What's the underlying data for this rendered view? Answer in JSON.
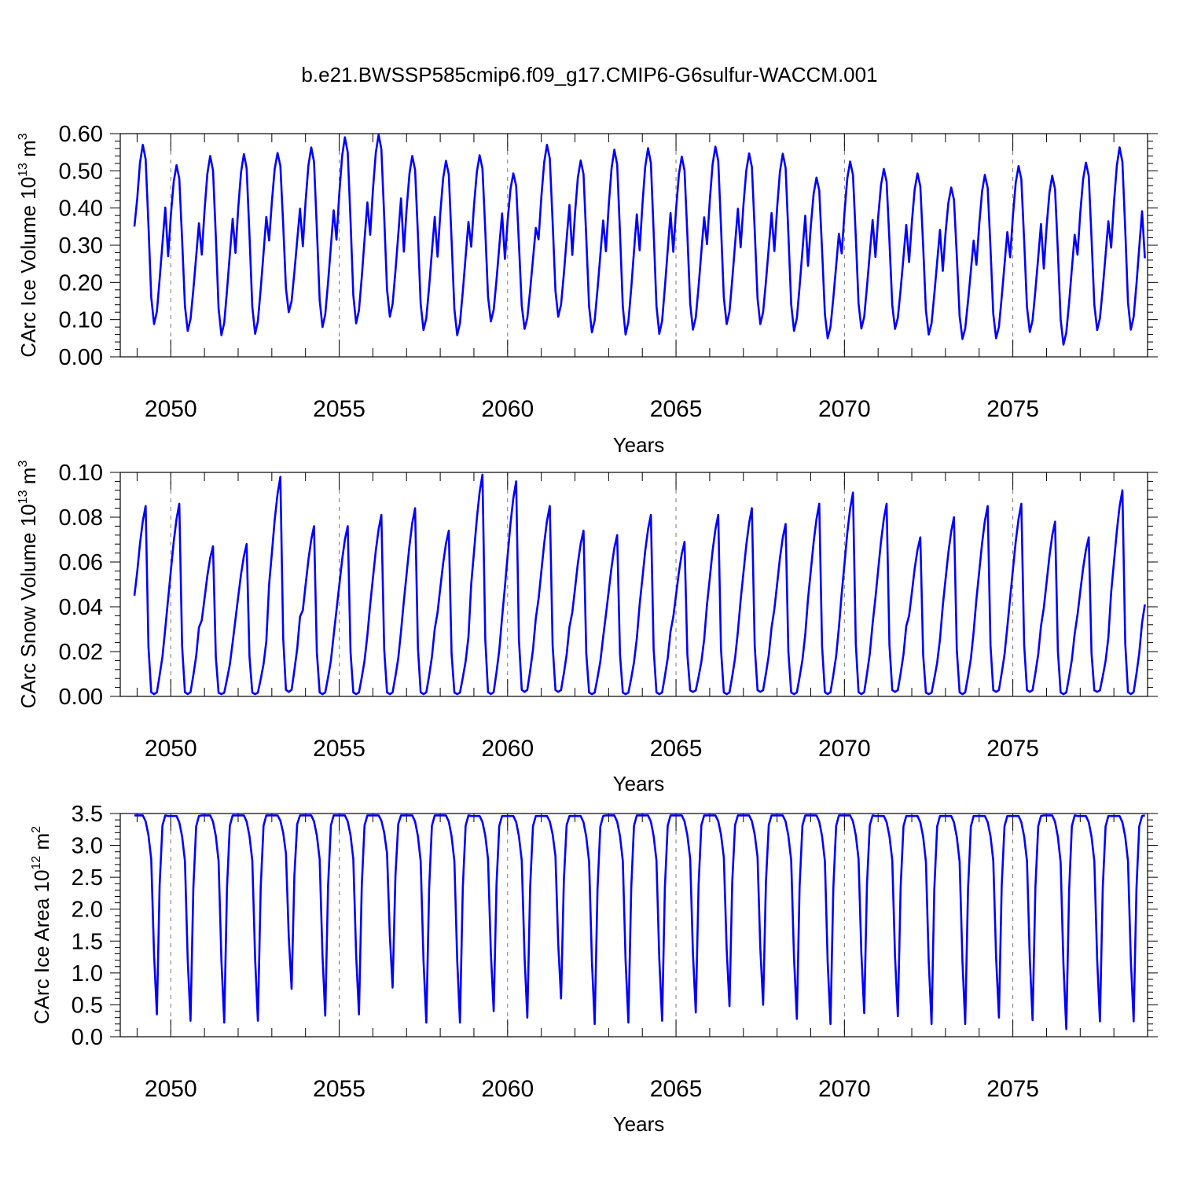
{
  "title": "b.e21.BWSSP585cmip6.f09_g17.CMIP6-G6sulfur-WACCM.001",
  "chart_data": [
    {
      "type": "line",
      "ylabel": "CArc Ice Volume 10",
      "ylabel_exp": "13",
      "ylabel_unit": " m",
      "ylabel_unit_exp": "3",
      "xlabel": "Years",
      "xlim": [
        2048.5,
        2079.0
      ],
      "ylim": [
        0.0,
        0.6
      ],
      "yticks": [
        0.0,
        0.1,
        0.2,
        0.3,
        0.4,
        0.5,
        0.6
      ],
      "ytick_labels": [
        "0.00",
        "0.10",
        "0.20",
        "0.30",
        "0.40",
        "0.50",
        "0.60"
      ],
      "xticks": [
        2050,
        2055,
        2060,
        2065,
        2070,
        2075
      ],
      "xtick_labels": [
        "2050",
        "2055",
        "2060",
        "2065",
        "2070",
        "2075"
      ],
      "grid": "dashed vertical at 5-year ticks",
      "line_color": "#0000ff",
      "year_start": 2049,
      "start_value": 0.35,
      "annual_max": [
        0.57,
        0.515,
        0.54,
        0.545,
        0.548,
        0.563,
        0.59,
        0.597,
        0.54,
        0.527,
        0.542,
        0.493,
        0.57,
        0.528,
        0.557,
        0.561,
        0.538,
        0.565,
        0.547,
        0.546,
        0.482,
        0.525,
        0.505,
        0.493,
        0.455,
        0.489,
        0.513,
        0.487,
        0.522,
        0.563
      ],
      "annual_min": [
        0.088,
        0.07,
        0.058,
        0.062,
        0.12,
        0.08,
        0.09,
        0.108,
        0.072,
        0.058,
        0.095,
        0.075,
        0.108,
        0.066,
        0.06,
        0.062,
        0.073,
        0.088,
        0.088,
        0.07,
        0.05,
        0.076,
        0.075,
        0.06,
        0.048,
        0.05,
        0.067,
        0.033,
        0.072,
        0.073
      ],
      "end_value": 0.265
    },
    {
      "type": "line",
      "ylabel": "CArc Snow Volume 10",
      "ylabel_exp": "13",
      "ylabel_unit": " m",
      "ylabel_unit_exp": "3",
      "xlabel": "Years",
      "xlim": [
        2048.5,
        2079.0
      ],
      "ylim": [
        0.0,
        0.1
      ],
      "yticks": [
        0.0,
        0.02,
        0.04,
        0.06,
        0.08,
        0.1
      ],
      "ytick_labels": [
        "0.00",
        "0.02",
        "0.04",
        "0.06",
        "0.08",
        "0.10"
      ],
      "xticks": [
        2050,
        2055,
        2060,
        2065,
        2070,
        2075
      ],
      "xtick_labels": [
        "2050",
        "2055",
        "2060",
        "2065",
        "2070",
        "2075"
      ],
      "grid": "dashed vertical at 5-year ticks",
      "line_color": "#0000ff",
      "year_start": 2049,
      "start_value": 0.045,
      "annual_max": [
        0.085,
        0.086,
        0.067,
        0.068,
        0.098,
        0.076,
        0.076,
        0.081,
        0.084,
        0.074,
        0.099,
        0.096,
        0.085,
        0.074,
        0.072,
        0.081,
        0.069,
        0.081,
        0.084,
        0.077,
        0.086,
        0.091,
        0.086,
        0.071,
        0.08,
        0.085,
        0.086,
        0.078,
        0.071,
        0.092
      ],
      "annual_min": [
        0.001,
        0.001,
        0.001,
        0.001,
        0.002,
        0.001,
        0.001,
        0.001,
        0.001,
        0.001,
        0.001,
        0.002,
        0.002,
        0.001,
        0.001,
        0.001,
        0.002,
        0.001,
        0.002,
        0.001,
        0.001,
        0.001,
        0.002,
        0.001,
        0.001,
        0.002,
        0.002,
        0.001,
        0.002,
        0.001
      ],
      "end_value": 0.041
    },
    {
      "type": "line",
      "ylabel": "CArc Ice Area 10",
      "ylabel_exp": "12",
      "ylabel_unit": " m",
      "ylabel_unit_exp": "2",
      "xlabel": "Years",
      "xlim": [
        2048.5,
        2079.0
      ],
      "ylim": [
        0.0,
        3.5
      ],
      "yticks": [
        0.0,
        0.5,
        1.0,
        1.5,
        2.0,
        2.5,
        3.0,
        3.5
      ],
      "ytick_labels": [
        "0.0",
        "0.5",
        "1.0",
        "1.5",
        "2.0",
        "2.5",
        "3.0",
        "3.5"
      ],
      "xticks": [
        2050,
        2055,
        2060,
        2065,
        2070,
        2075
      ],
      "xtick_labels": [
        "2050",
        "2055",
        "2060",
        "2065",
        "2070",
        "2075"
      ],
      "grid": "dashed vertical at 5-year ticks",
      "line_color": "#0000ff",
      "year_start": 2049,
      "start_value": 3.47,
      "annual_max": [
        3.47,
        3.46,
        3.47,
        3.47,
        3.47,
        3.47,
        3.47,
        3.47,
        3.47,
        3.47,
        3.46,
        3.46,
        3.46,
        3.46,
        3.47,
        3.47,
        3.47,
        3.47,
        3.47,
        3.47,
        3.47,
        3.47,
        3.46,
        3.46,
        3.46,
        3.46,
        3.46,
        3.47,
        3.46,
        3.46
      ],
      "annual_min": [
        0.35,
        0.25,
        0.22,
        0.25,
        0.75,
        0.33,
        0.35,
        0.77,
        0.22,
        0.22,
        0.4,
        0.3,
        0.6,
        0.2,
        0.22,
        0.25,
        0.38,
        0.48,
        0.5,
        0.28,
        0.2,
        0.37,
        0.32,
        0.2,
        0.2,
        0.3,
        0.26,
        0.12,
        0.24,
        0.24
      ],
      "end_value": 3.47
    }
  ]
}
